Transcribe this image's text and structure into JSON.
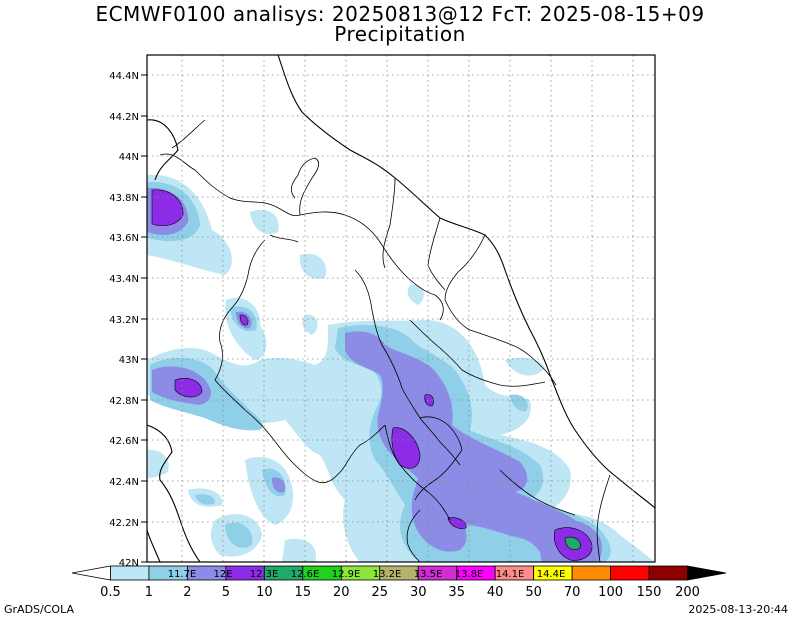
{
  "header": {
    "title": "ECMWF0100 analisys: 20250813@12 FcT: 2025-08-15+09",
    "subtitle": "Precipitation"
  },
  "map": {
    "lat_labels": [
      "44.4N",
      "44.2N",
      "44N",
      "43.8N",
      "43.6N",
      "43.4N",
      "43.2N",
      "43N",
      "42.8N",
      "42.6N",
      "42.4N",
      "42.2N",
      "42N"
    ],
    "lon_labels": [
      "11.7E",
      "12E",
      "12.3E",
      "12.6E",
      "12.9E",
      "13.2E",
      "13.5E",
      "13.8E",
      "14.1E",
      "14.4E"
    ]
  },
  "colorbar": {
    "levels": [
      "0.5",
      "1",
      "2",
      "5",
      "10",
      "15",
      "20",
      "25",
      "30",
      "35",
      "40",
      "50",
      "70",
      "100",
      "150",
      "200"
    ],
    "colors": [
      "#ffffff",
      "#bfe6f4",
      "#8fcfe8",
      "#8c8ce6",
      "#8c2ce6",
      "#1faa6a",
      "#1fd21f",
      "#8ce63c",
      "#b4b46e",
      "#d22cd2",
      "#ff00ff",
      "#ff8c8c",
      "#ffff00",
      "#ff8c00",
      "#ff0000",
      "#8c0000"
    ]
  },
  "footer": {
    "credit": "GrADS/COLA",
    "timestamp": "2025-08-13-20:44"
  }
}
